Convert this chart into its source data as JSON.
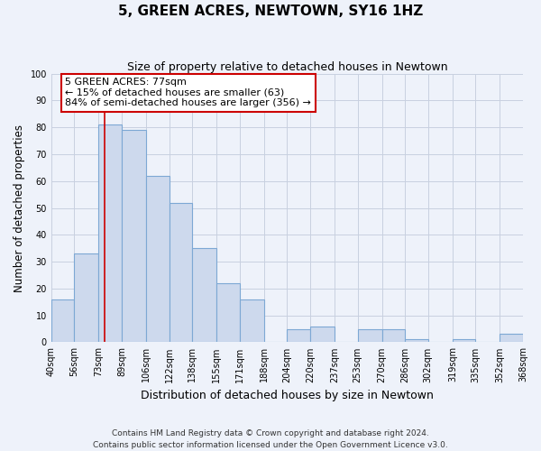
{
  "title": "5, GREEN ACRES, NEWTOWN, SY16 1HZ",
  "subtitle": "Size of property relative to detached houses in Newtown",
  "xlabel": "Distribution of detached houses by size in Newtown",
  "ylabel": "Number of detached properties",
  "bin_edges": [
    40,
    56,
    73,
    89,
    106,
    122,
    138,
    155,
    171,
    188,
    204,
    220,
    237,
    253,
    270,
    286,
    302,
    319,
    335,
    352,
    368
  ],
  "counts": [
    16,
    33,
    81,
    79,
    62,
    52,
    35,
    22,
    16,
    0,
    5,
    6,
    0,
    5,
    5,
    1,
    0,
    1,
    0,
    3
  ],
  "bar_facecolor": "#cdd9ed",
  "bar_edgecolor": "#7da8d4",
  "vline_x": 77,
  "vline_color": "#cc0000",
  "ylim": [
    0,
    100
  ],
  "yticks": [
    0,
    10,
    20,
    30,
    40,
    50,
    60,
    70,
    80,
    90,
    100
  ],
  "annotation_title": "5 GREEN ACRES: 77sqm",
  "annotation_line1": "← 15% of detached houses are smaller (63)",
  "annotation_line2": "84% of semi-detached houses are larger (356) →",
  "annotation_box_facecolor": "#ffffff",
  "annotation_box_edgecolor": "#cc0000",
  "tick_labels": [
    "40sqm",
    "56sqm",
    "73sqm",
    "89sqm",
    "106sqm",
    "122sqm",
    "138sqm",
    "155sqm",
    "171sqm",
    "188sqm",
    "204sqm",
    "220sqm",
    "237sqm",
    "253sqm",
    "270sqm",
    "286sqm",
    "302sqm",
    "319sqm",
    "335sqm",
    "352sqm",
    "368sqm"
  ],
  "footer_line1": "Contains HM Land Registry data © Crown copyright and database right 2024.",
  "footer_line2": "Contains public sector information licensed under the Open Government Licence v3.0.",
  "bg_color": "#eef2fa",
  "plot_bg_color": "#eef2fa",
  "grid_color": "#c8d0e0"
}
